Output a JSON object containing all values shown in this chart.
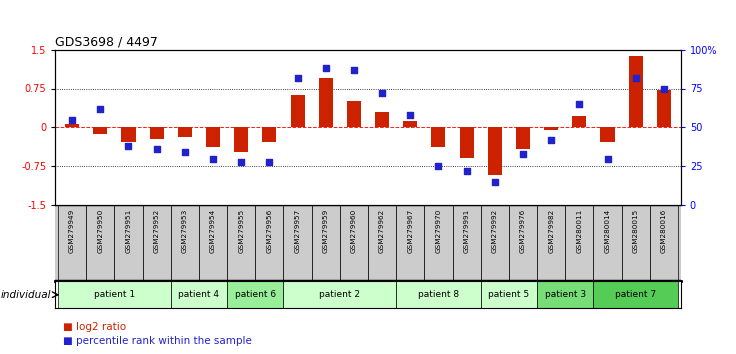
{
  "title": "GDS3698 / 4497",
  "samples": [
    "GSM279949",
    "GSM279950",
    "GSM279951",
    "GSM279952",
    "GSM279953",
    "GSM279954",
    "GSM279955",
    "GSM279956",
    "GSM279957",
    "GSM279959",
    "GSM279960",
    "GSM279962",
    "GSM279967",
    "GSM279970",
    "GSM279991",
    "GSM279992",
    "GSM279976",
    "GSM279982",
    "GSM280011",
    "GSM280014",
    "GSM280015",
    "GSM280016"
  ],
  "log2_ratio": [
    0.07,
    -0.12,
    -0.28,
    -0.22,
    -0.18,
    -0.38,
    -0.48,
    -0.28,
    0.62,
    0.95,
    0.5,
    0.3,
    0.13,
    -0.38,
    -0.58,
    -0.92,
    -0.42,
    -0.05,
    0.22,
    -0.28,
    1.38,
    0.72
  ],
  "percentile_rank": [
    55,
    62,
    38,
    36,
    34,
    30,
    28,
    28,
    82,
    88,
    87,
    72,
    58,
    25,
    22,
    15,
    33,
    42,
    65,
    30,
    82,
    75
  ],
  "patients": [
    {
      "label": "patient 1",
      "start": 0,
      "end": 4,
      "color": "#ccffcc"
    },
    {
      "label": "patient 4",
      "start": 4,
      "end": 6,
      "color": "#ccffcc"
    },
    {
      "label": "patient 6",
      "start": 6,
      "end": 8,
      "color": "#99ee99"
    },
    {
      "label": "patient 2",
      "start": 8,
      "end": 12,
      "color": "#ccffcc"
    },
    {
      "label": "patient 8",
      "start": 12,
      "end": 15,
      "color": "#ccffcc"
    },
    {
      "label": "patient 5",
      "start": 15,
      "end": 17,
      "color": "#ccffcc"
    },
    {
      "label": "patient 3",
      "start": 17,
      "end": 19,
      "color": "#77dd77"
    },
    {
      "label": "patient 7",
      "start": 19,
      "end": 22,
      "color": "#55cc55"
    }
  ],
  "ylim": [
    -1.5,
    1.5
  ],
  "ylabel_right_ticks": [
    0,
    25,
    50,
    75,
    100
  ],
  "ylabel_right_labels": [
    "0",
    "25",
    "50",
    "75",
    "100%"
  ],
  "yticks_left": [
    -1.5,
    -0.75,
    0,
    0.75,
    1.5
  ],
  "bar_color": "#cc2200",
  "dot_color": "#2222cc",
  "background_color": "#ffffff",
  "legend_red_label": "log2 ratio",
  "legend_blue_label": "percentile rank within the sample",
  "individual_label": "individual"
}
